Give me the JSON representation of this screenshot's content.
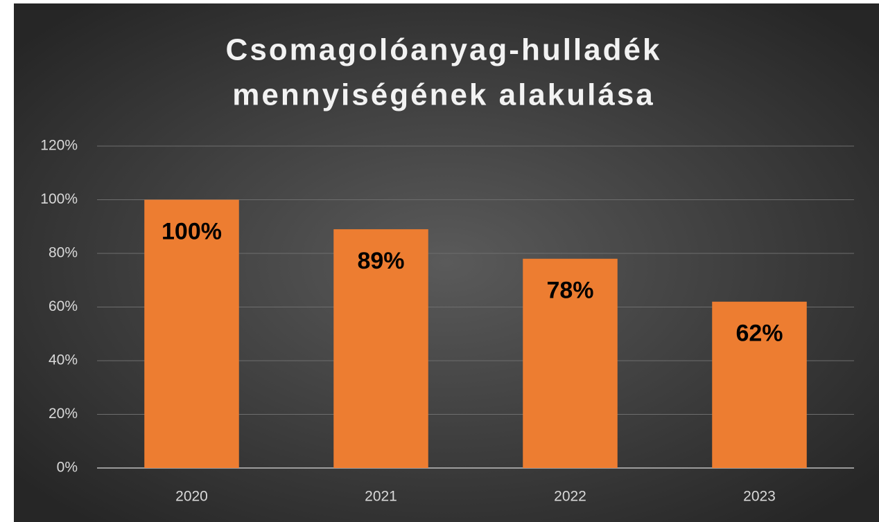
{
  "chart_data": {
    "type": "bar",
    "title": [
      "Csomagolóanyag-hulladék",
      "mennyiségének alakulása"
    ],
    "categories": [
      "2020",
      "2021",
      "2022",
      "2023"
    ],
    "values": [
      100,
      89,
      78,
      62
    ],
    "value_labels": [
      "100%",
      "89%",
      "78%",
      "62%"
    ],
    "color": "#ed7d31",
    "ylim": [
      0,
      120
    ],
    "yticks": [
      {
        "value": 0,
        "label": "0%"
      },
      {
        "value": 20,
        "label": "20%"
      },
      {
        "value": 40,
        "label": "40%"
      },
      {
        "value": 60,
        "label": "60%"
      },
      {
        "value": 80,
        "label": "80%"
      },
      {
        "value": 100,
        "label": "100%"
      },
      {
        "value": 120,
        "label": "120%"
      }
    ],
    "grid": true
  }
}
